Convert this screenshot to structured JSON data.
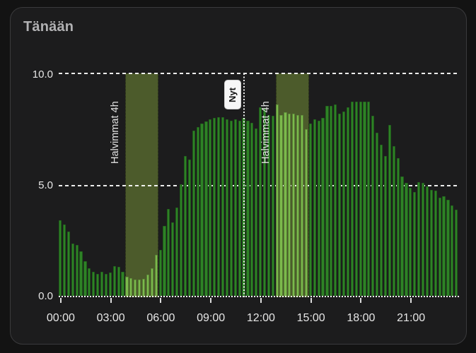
{
  "header": {
    "title": "Tänään"
  },
  "chart_data": {
    "type": "bar",
    "title": "Tänään",
    "interval_minutes": 15,
    "x_start_hour": 0,
    "x_end_hour": 24,
    "x_tick_hours": [
      0,
      3,
      6,
      9,
      12,
      15,
      18,
      21
    ],
    "x_tick_labels": [
      "00:00",
      "03:00",
      "06:00",
      "09:00",
      "12:00",
      "15:00",
      "18:00",
      "21:00"
    ],
    "y_ticks": [
      0.0,
      5.0,
      10.0
    ],
    "y_tick_labels": [
      "0.0",
      "5.0",
      "10.0"
    ],
    "ylim": [
      0,
      10
    ],
    "grid": "dashed horizontal lines at 5.0 and 10.0, dotted baseline at 0.0",
    "values": [
      3.45,
      3.25,
      2.95,
      2.4,
      2.35,
      2.05,
      1.6,
      1.3,
      1.15,
      1.05,
      1.15,
      1.05,
      1.1,
      1.4,
      1.35,
      1.15,
      0.9,
      0.85,
      0.8,
      0.78,
      0.82,
      1.0,
      1.3,
      1.9,
      2.1,
      3.2,
      3.95,
      3.35,
      4.0,
      5.05,
      6.3,
      6.15,
      7.45,
      7.6,
      7.75,
      7.85,
      7.95,
      8.0,
      8.05,
      8.05,
      7.95,
      7.9,
      7.95,
      7.9,
      8.0,
      7.9,
      7.8,
      7.55,
      8.5,
      8.45,
      8.15,
      8.1,
      8.6,
      8.15,
      8.25,
      8.2,
      8.2,
      8.15,
      8.15,
      7.5,
      7.75,
      7.95,
      7.9,
      8.0,
      8.55,
      8.55,
      8.6,
      8.2,
      8.3,
      8.5,
      8.75,
      8.75,
      8.75,
      8.75,
      8.75,
      8.1,
      7.35,
      6.8,
      6.3,
      7.7,
      6.75,
      6.2,
      5.4,
      5.1,
      4.9,
      4.7,
      5.15,
      5.1,
      4.95,
      4.8,
      4.75,
      4.45,
      4.5,
      4.35,
      4.1,
      3.9
    ],
    "highlight_windows": [
      {
        "label": "Halvimmat 4h",
        "start_hour": 4,
        "end_hour": 6
      },
      {
        "label": "Halvimmat 4h",
        "start_hour": 13,
        "end_hour": 15
      }
    ],
    "now_marker": {
      "label": "Nyt",
      "hour": 11.1
    },
    "colors": {
      "page_bg": "#131313",
      "card_bg": "#1c1c1d",
      "card_border": "#3a3a3c",
      "title_text": "#b1b1b3",
      "axis_text": "#e6e6e6",
      "gridline": "#ffffff",
      "bar": "#2e8226",
      "bar_highlight": "#7cb94c",
      "band": "#4c5b2b",
      "now_line": "#efefef",
      "now_badge_bg": "#f7f7f7",
      "now_badge_text": "#151515"
    }
  }
}
